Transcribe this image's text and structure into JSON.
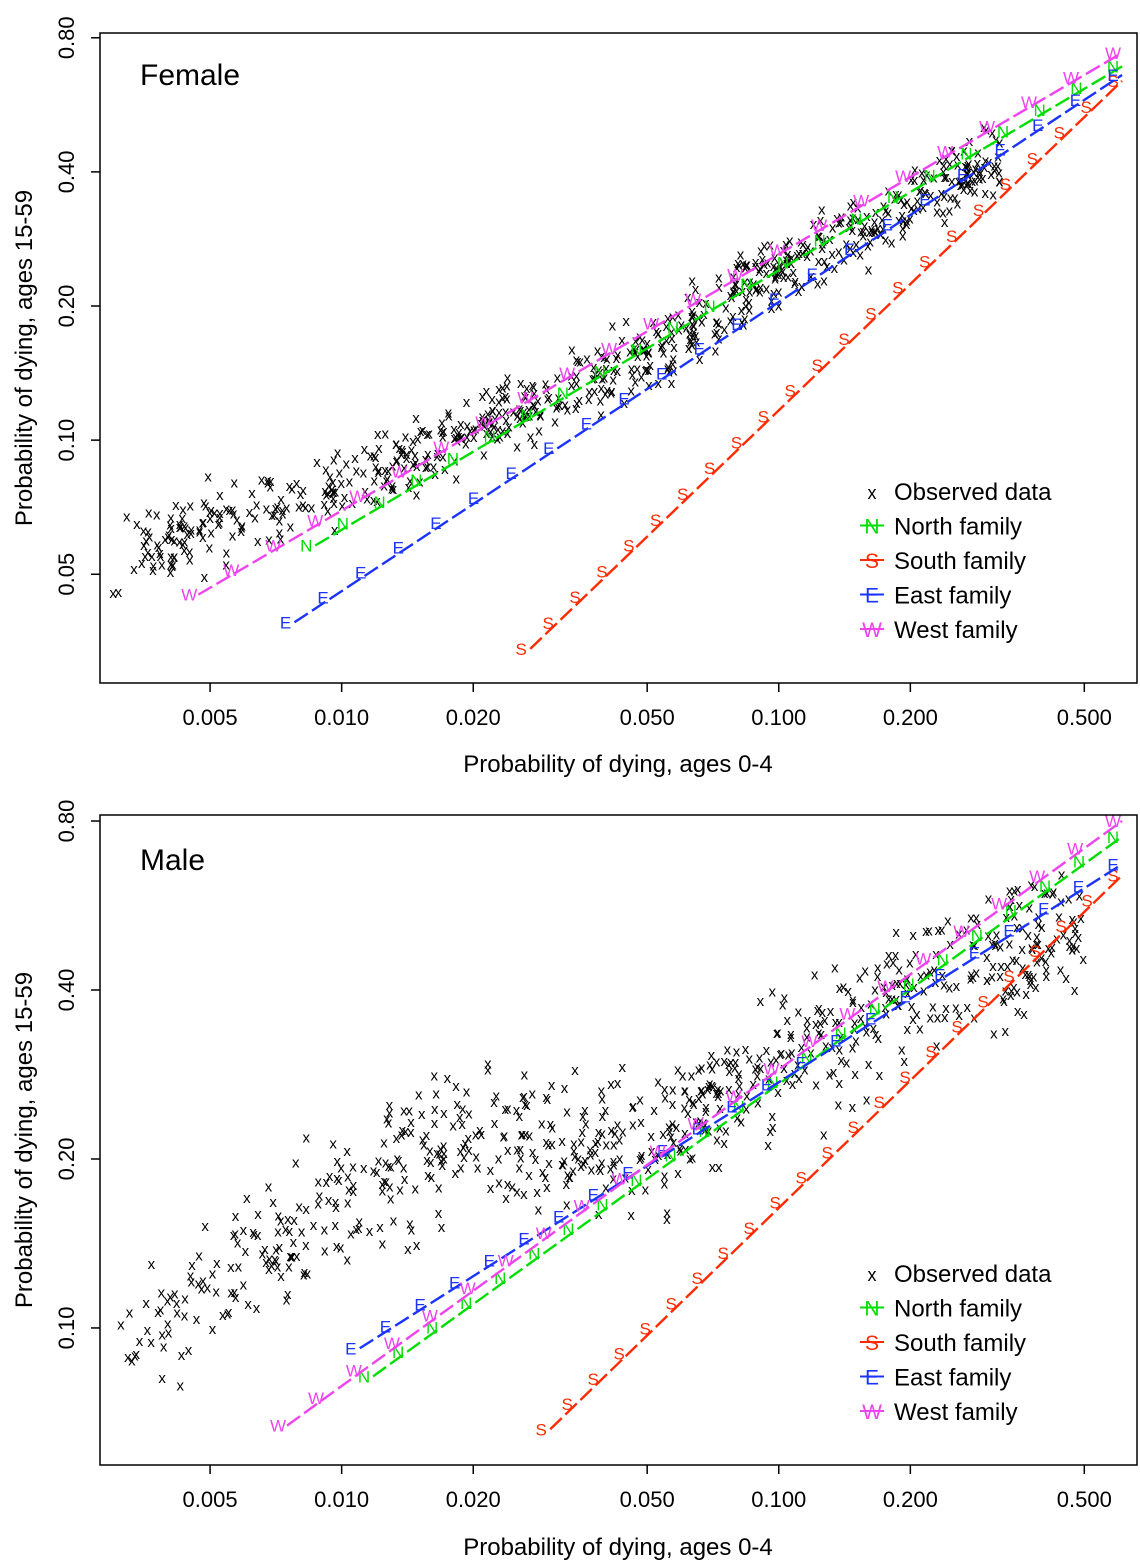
{
  "colors": {
    "observed": "#000000",
    "north": "#00dd00",
    "south": "#ff2a00",
    "east": "#1a33ff",
    "west": "#ee44ee"
  },
  "chart_data": [
    {
      "type": "scatter",
      "title": "Female",
      "xlabel": "Probability of dying, ages 0-4",
      "ylabel": "Probability of dying, ages 15-59",
      "x_scale": "log",
      "y_scale": "log",
      "xlim": [
        0.0028,
        0.66
      ],
      "ylim": [
        0.0285,
        0.82
      ],
      "xticks": [
        0.005,
        0.01,
        0.02,
        0.05,
        0.1,
        0.2,
        0.5
      ],
      "xtick_labels": [
        "0.005",
        "0.010",
        "0.020",
        "0.050",
        "0.100",
        "0.200",
        "0.500"
      ],
      "yticks": [
        0.05,
        0.1,
        0.2,
        0.4,
        0.8
      ],
      "ytick_labels": [
        "0.05",
        "0.10",
        "0.20",
        "0.40",
        "0.80"
      ],
      "legend_position": "bottom-right",
      "legend": [
        {
          "key": "observed",
          "symbol": "x",
          "label": "Observed data"
        },
        {
          "key": "north",
          "symbol": "N",
          "label": "North family"
        },
        {
          "key": "south",
          "symbol": "S",
          "label": "South family"
        },
        {
          "key": "east",
          "symbol": "E",
          "label": "East family"
        },
        {
          "key": "west",
          "symbol": "W",
          "label": "West family"
        }
      ],
      "observed": {
        "x_range": [
          0.003,
          0.32
        ],
        "count": 700,
        "seed": 11,
        "trend": [
          [
            0.003,
            0.052
          ],
          [
            0.005,
            0.064
          ],
          [
            0.01,
            0.078
          ],
          [
            0.02,
            0.105
          ],
          [
            0.05,
            0.155
          ],
          [
            0.1,
            0.24
          ],
          [
            0.2,
            0.34
          ],
          [
            0.3,
            0.42
          ]
        ],
        "spread": 0.16
      },
      "series": [
        {
          "key": "north",
          "symbol": "N",
          "name": "North family",
          "x0": 0.0087,
          "y0": 0.058,
          "x1": 0.61,
          "y1": 0.69
        },
        {
          "key": "south",
          "symbol": "S",
          "name": "South family",
          "x0": 0.027,
          "y0": 0.034,
          "x1": 0.61,
          "y1": 0.64
        },
        {
          "key": "east",
          "symbol": "E",
          "name": "East family",
          "x0": 0.0078,
          "y0": 0.039,
          "x1": 0.61,
          "y1": 0.66
        },
        {
          "key": "west",
          "symbol": "W",
          "name": "West family",
          "x0": 0.0047,
          "y0": 0.045,
          "x1": 0.61,
          "y1": 0.74
        }
      ]
    },
    {
      "type": "scatter",
      "title": "Male",
      "xlabel": "Probability of dying, ages 0-4",
      "ylabel": "Probability of dying, ages 15-59",
      "x_scale": "log",
      "y_scale": "log",
      "xlim": [
        0.0028,
        0.66
      ],
      "ylim": [
        0.057,
        0.82
      ],
      "xticks": [
        0.005,
        0.01,
        0.02,
        0.05,
        0.1,
        0.2,
        0.5
      ],
      "xtick_labels": [
        "0.005",
        "0.010",
        "0.020",
        "0.050",
        "0.100",
        "0.200",
        "0.500"
      ],
      "yticks": [
        0.1,
        0.2,
        0.4,
        0.8
      ],
      "ytick_labels": [
        "0.10",
        "0.20",
        "0.40",
        "0.80"
      ],
      "legend_position": "bottom-right",
      "legend": [
        {
          "key": "observed",
          "symbol": "x",
          "label": "Observed data"
        },
        {
          "key": "north",
          "symbol": "N",
          "label": "North family"
        },
        {
          "key": "south",
          "symbol": "S",
          "label": "South family"
        },
        {
          "key": "east",
          "symbol": "E",
          "label": "East family"
        },
        {
          "key": "west",
          "symbol": "W",
          "label": "West family"
        }
      ],
      "observed": {
        "x_range": [
          0.003,
          0.5
        ],
        "count": 700,
        "seed": 29,
        "trend": [
          [
            0.003,
            0.085
          ],
          [
            0.005,
            0.12
          ],
          [
            0.01,
            0.17
          ],
          [
            0.02,
            0.22
          ],
          [
            0.05,
            0.21
          ],
          [
            0.1,
            0.3
          ],
          [
            0.2,
            0.4
          ],
          [
            0.4,
            0.5
          ]
        ],
        "spread": 0.24
      },
      "series": [
        {
          "key": "north",
          "symbol": "N",
          "name": "North family",
          "x0": 0.0118,
          "y0": 0.082,
          "x1": 0.61,
          "y1": 0.75
        },
        {
          "key": "south",
          "symbol": "S",
          "name": "South family",
          "x0": 0.03,
          "y0": 0.066,
          "x1": 0.61,
          "y1": 0.64
        },
        {
          "key": "east",
          "symbol": "E",
          "name": "East family",
          "x0": 0.011,
          "y0": 0.092,
          "x1": 0.61,
          "y1": 0.67
        },
        {
          "key": "west",
          "symbol": "W",
          "name": "West family",
          "x0": 0.0075,
          "y0": 0.067,
          "x1": 0.61,
          "y1": 0.8
        }
      ]
    }
  ]
}
